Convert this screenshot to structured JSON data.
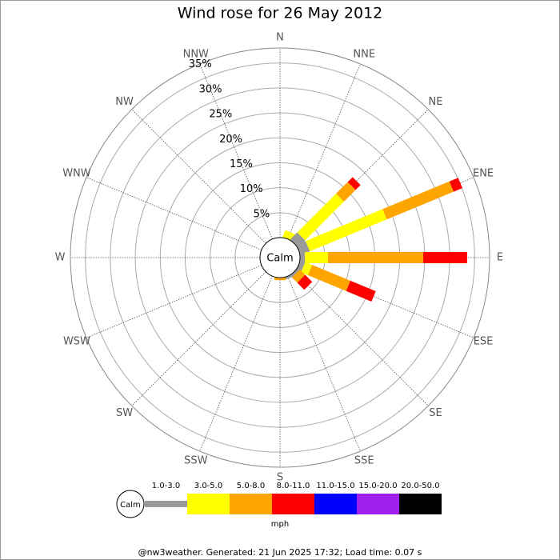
{
  "chart_data": {
    "type": "windrose",
    "title": "Wind rose for 26 May 2012",
    "categories": [
      "N",
      "NNE",
      "NE",
      "ENE",
      "E",
      "ESE",
      "SE",
      "SSE",
      "S",
      "SSW",
      "SW",
      "WSW",
      "W",
      "WNW",
      "NW",
      "NNW"
    ],
    "center_label": "Calm",
    "legend_unit": "mph",
    "footer": "@nw3weather. Generated: 21 Jun 2025 17:32; Load time: 0.07 s",
    "rlim": [
      0,
      38
    ],
    "rticks": [
      {
        "value": 5,
        "label": "5%"
      },
      {
        "value": 10,
        "label": "10%"
      },
      {
        "value": 15,
        "label": "15%"
      },
      {
        "value": 20,
        "label": "20%"
      },
      {
        "value": 25,
        "label": "25%"
      },
      {
        "value": 30,
        "label": "30%"
      },
      {
        "value": 35,
        "label": "35%"
      }
    ],
    "series": [
      {
        "name": "1.0-3.0",
        "color": "#999999",
        "values": [
          0,
          0,
          2,
          2,
          1,
          1,
          0.5,
          0.5,
          0,
          0,
          0,
          0,
          0,
          0,
          0,
          0
        ]
      },
      {
        "name": "3.0-5.0",
        "color": "#ffff00",
        "values": [
          0,
          1.5,
          11,
          16.7,
          4.6,
          1.5,
          0,
          0,
          0,
          0,
          0,
          0,
          0,
          0,
          0,
          0
        ]
      },
      {
        "name": "5.0-8.0",
        "color": "#ffa500",
        "values": [
          0,
          0,
          3.3,
          14.5,
          19.1,
          8.3,
          1.5,
          0,
          0.5,
          0,
          0,
          0,
          0,
          0,
          0,
          0
        ]
      },
      {
        "name": "8.0-11.0",
        "color": "#ff0000",
        "values": [
          0,
          0,
          1.4,
          1.9,
          8.8,
          5.5,
          2,
          0,
          0,
          0,
          0,
          0,
          0,
          0,
          0,
          0
        ]
      },
      {
        "name": "11.0-15.0",
        "color": "#0000ff",
        "values": [
          0,
          0,
          0,
          0,
          0,
          0,
          0,
          0,
          0,
          0,
          0,
          0,
          0,
          0,
          0,
          0
        ]
      },
      {
        "name": "15.0-20.0",
        "color": "#a020f0",
        "values": [
          0,
          0,
          0,
          0,
          0,
          0,
          0,
          0,
          0,
          0,
          0,
          0,
          0,
          0,
          0,
          0
        ]
      },
      {
        "name": "20.0-50.0",
        "color": "#000000",
        "values": [
          0,
          0,
          0,
          0,
          0,
          0,
          0,
          0,
          0,
          0,
          0,
          0,
          0,
          0,
          0,
          0
        ]
      }
    ]
  }
}
